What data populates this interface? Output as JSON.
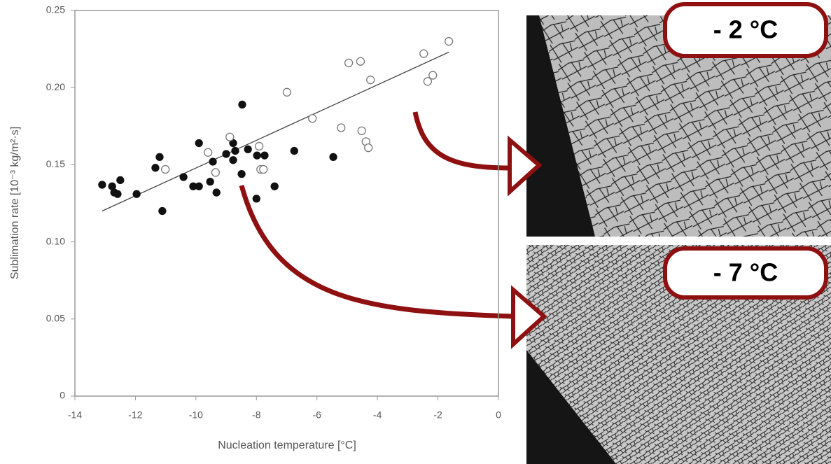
{
  "chart_data": {
    "type": "scatter",
    "xlabel": "Nucleation temperature [°C]",
    "ylabel": "Sublimation rate [10⁻³ kg/m²·s]",
    "xlim": [
      -14,
      0
    ],
    "xticks": [
      -14,
      -12,
      -10,
      -8,
      -6,
      -4,
      -2,
      0
    ],
    "ylim": [
      0,
      0.25
    ],
    "yticks": [
      0,
      0.05,
      {
        "value": 0.1,
        "label": "0.10"
      },
      0.15,
      {
        "value": 0.2,
        "label": "0.20"
      },
      0.25
    ],
    "series": [
      {
        "color": "#111111",
        "filled": true,
        "x": [
          -13.1,
          -12.77,
          -12.7,
          -12.59,
          -12.5,
          -11.96,
          -11.34,
          -11.2,
          -11.11,
          -10.41,
          -10.09,
          -9.9,
          -9.9,
          -9.53,
          -9.44,
          -9.32,
          -9.0,
          -8.77,
          -8.77,
          -8.7,
          -8.49,
          -8.47,
          -8.28,
          -8.0,
          -7.98,
          -7.73,
          -7.4,
          -6.75,
          -5.46
        ],
        "values": [
          0.137,
          0.136,
          0.132,
          0.131,
          0.14,
          0.131,
          0.148,
          0.155,
          0.12,
          0.142,
          0.136,
          0.136,
          0.164,
          0.139,
          0.152,
          0.132,
          0.157,
          0.164,
          0.153,
          0.159,
          0.144,
          0.189,
          0.16,
          0.128,
          0.156,
          0.156,
          0.136,
          0.159,
          0.155
        ]
      },
      {
        "color": "#777777",
        "filled": false,
        "x": [
          -11.01,
          -9.6,
          -9.35,
          -8.88,
          -7.91,
          -7.86,
          -7.77,
          -6.99,
          -6.15,
          -5.2,
          -4.95,
          -4.56,
          -4.52,
          -4.38,
          -4.3,
          -4.23,
          -2.47,
          -2.34,
          -2.17,
          -1.64
        ],
        "values": [
          0.147,
          0.158,
          0.145,
          0.168,
          0.162,
          0.147,
          0.147,
          0.197,
          0.18,
          0.174,
          0.216,
          0.217,
          0.172,
          0.165,
          0.161,
          0.205,
          0.222,
          0.204,
          0.208,
          0.23
        ]
      }
    ],
    "trend_line": {
      "color": "#444444",
      "x": [
        -13.1,
        -1.64
      ],
      "values": [
        0.12,
        0.223
      ]
    }
  },
  "panels": [
    {
      "label": "- 2 °C"
    },
    {
      "label": "- 7 °C"
    }
  ]
}
